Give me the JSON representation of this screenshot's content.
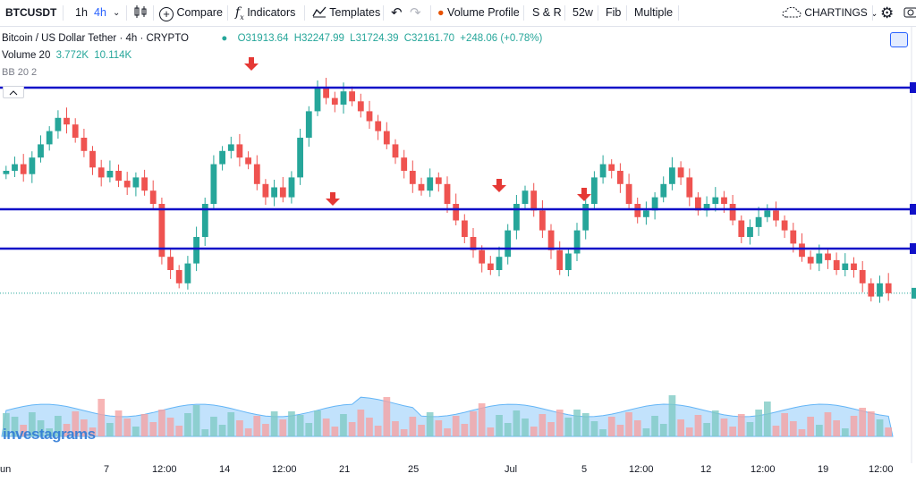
{
  "toolbar": {
    "symbol": "BTCUSDT",
    "interval_1h": "1h",
    "interval_4h": "4h",
    "compare": "Compare",
    "indicators": "Indicators",
    "templates": "Templates",
    "volume_profile": "Volume Profile",
    "s_and_r": "S & R",
    "w52": "52w",
    "fib": "Fib",
    "multiple": "Multiple",
    "brand": "CHARTINGS"
  },
  "legend": {
    "title": "Bitcoin / US Dollar Tether · 4h · CRYPTO",
    "open": "O31913.64",
    "high": "H32247.99",
    "low": "L31724.39",
    "close": "C32161.70",
    "change": "+248.06 (+0.78%)",
    "volume_label": "Volume 20",
    "volume_v1": "3.772K",
    "volume_v2": "10.114K",
    "bb_label": "BB 20 2"
  },
  "watermark": "investagrams",
  "colors": {
    "up": "#26a69a",
    "down": "#ef5350",
    "hline": "#1010c8",
    "arrow": "#e53935",
    "volume_area": "#90caf9",
    "accent": "#2962ff"
  },
  "chart_data": {
    "type": "candlestick",
    "symbol": "Bitcoin / US Dollar Tether",
    "interval": "4h",
    "x_ticks": [
      "un",
      "7",
      "12:00",
      "14",
      "12:00",
      "21",
      "25",
      "Jul",
      "5",
      "12:00",
      "12",
      "12:00",
      "19",
      "12:00"
    ],
    "horizontal_lines": [
      {
        "name": "upper",
        "y_level": 0.945
      },
      {
        "name": "middle",
        "y_level": 0.74
      },
      {
        "name": "lower",
        "y_level": 0.7
      }
    ],
    "arrows_at": [
      "14 Jun",
      "19 Jun",
      "1 Jul",
      "5 Jul"
    ],
    "close_approx": [
      0.7,
      0.72,
      0.69,
      0.74,
      0.78,
      0.82,
      0.86,
      0.84,
      0.8,
      0.76,
      0.71,
      0.68,
      0.7,
      0.67,
      0.65,
      0.68,
      0.64,
      0.6,
      0.44,
      0.4,
      0.36,
      0.42,
      0.5,
      0.6,
      0.72,
      0.76,
      0.78,
      0.74,
      0.72,
      0.66,
      0.62,
      0.65,
      0.62,
      0.68,
      0.8,
      0.88,
      0.95,
      0.92,
      0.9,
      0.94,
      0.91,
      0.88,
      0.85,
      0.82,
      0.78,
      0.74,
      0.7,
      0.66,
      0.64,
      0.68,
      0.66,
      0.6,
      0.55,
      0.5,
      0.46,
      0.42,
      0.4,
      0.44,
      0.52,
      0.6,
      0.64,
      0.58,
      0.52,
      0.46,
      0.4,
      0.45,
      0.52,
      0.6,
      0.68,
      0.72,
      0.7,
      0.66,
      0.6,
      0.56,
      0.58,
      0.62,
      0.66,
      0.71,
      0.68,
      0.62,
      0.58,
      0.6,
      0.62,
      0.6,
      0.55,
      0.5,
      0.53,
      0.56,
      0.58,
      0.55,
      0.52,
      0.48,
      0.44,
      0.42,
      0.45,
      0.43,
      0.4,
      0.42,
      0.4,
      0.36,
      0.32,
      0.36,
      0.33
    ]
  }
}
